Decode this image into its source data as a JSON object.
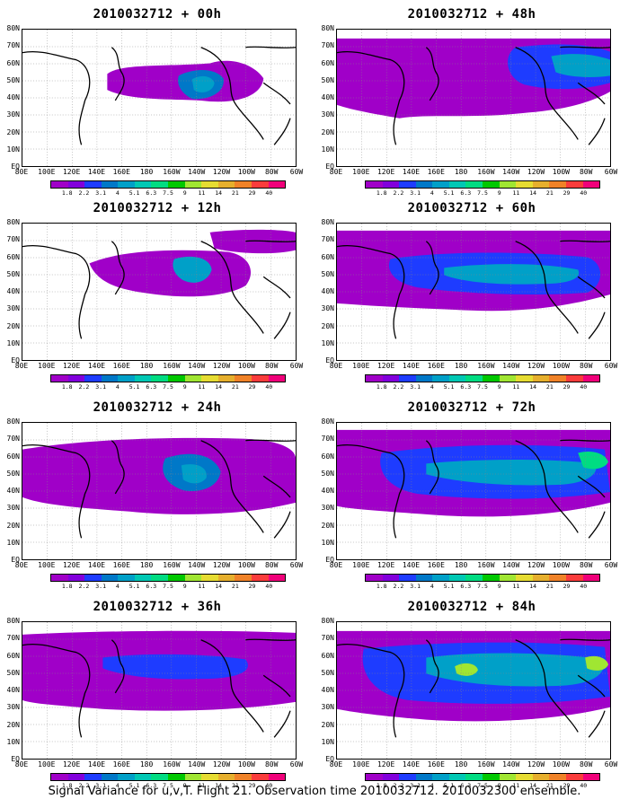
{
  "panels": [
    {
      "title": "2010032712 + 00h"
    },
    {
      "title": "2010032712 + 48h"
    },
    {
      "title": "2010032712 + 12h"
    },
    {
      "title": "2010032712 + 60h"
    },
    {
      "title": "2010032712 + 24h"
    },
    {
      "title": "2010032712 + 72h"
    },
    {
      "title": "2010032712 + 36h"
    },
    {
      "title": "2010032712 + 84h"
    }
  ],
  "lat_labels": [
    "80N",
    "70N",
    "60N",
    "50N",
    "40N",
    "30N",
    "20N",
    "10N",
    "EQ"
  ],
  "lon_labels": [
    "80E",
    "100E",
    "120E",
    "140E",
    "160E",
    "180",
    "160W",
    "140W",
    "120W",
    "100W",
    "80W",
    "60W"
  ],
  "colorbar": {
    "levels": [
      "1.8",
      "2.2",
      "3.1",
      "4",
      "5.1",
      "6.3",
      "7.5",
      "9",
      "11",
      "14",
      "21",
      "29",
      "40"
    ],
    "colors": [
      "#a000c8",
      "#8200dc",
      "#1e3cff",
      "#0078c8",
      "#00a0c8",
      "#00c8b4",
      "#00dc82",
      "#00c800",
      "#a0e632",
      "#e6dc32",
      "#e6af2d",
      "#f08228",
      "#fa3c3c",
      "#f0007a"
    ]
  },
  "footer": "Signal Variance for u,v,T. Flight 21. Observation time 2010032712. 2010032300 ensemble."
}
